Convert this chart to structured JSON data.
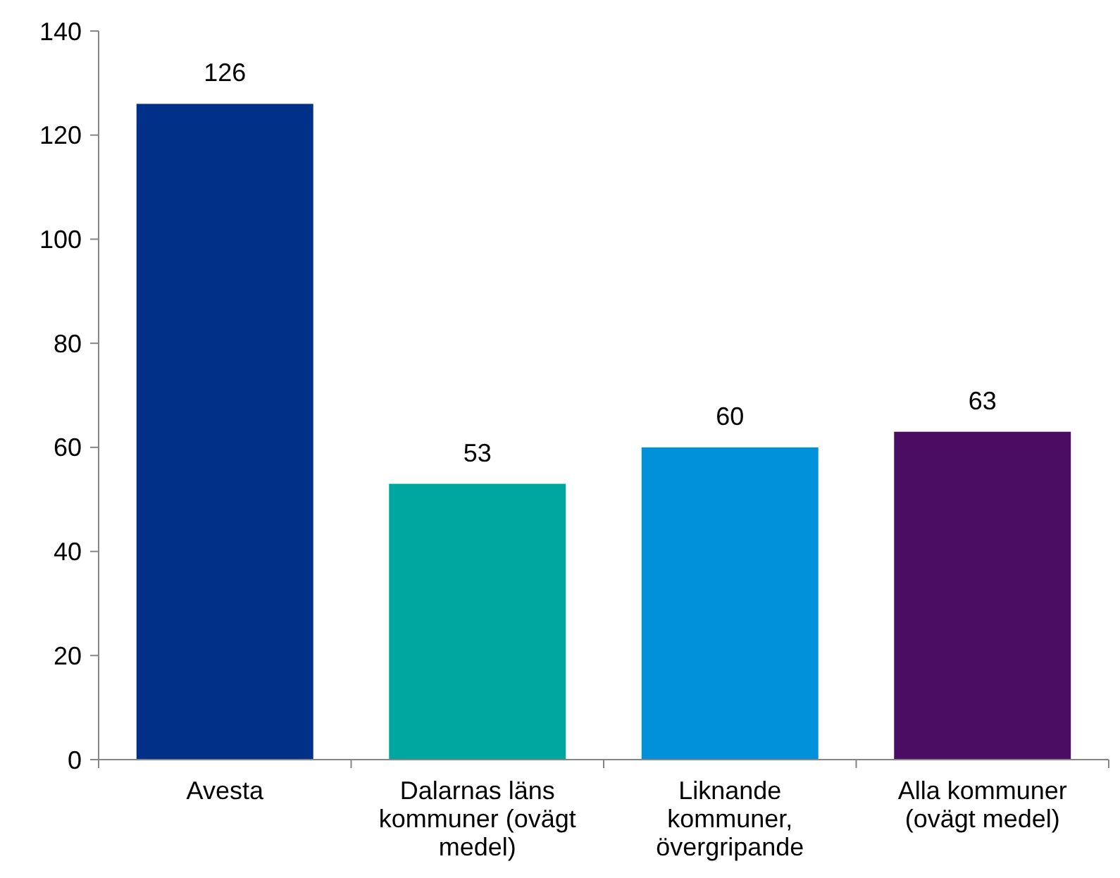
{
  "chart_data": {
    "type": "bar",
    "categories": [
      "Avesta",
      "Dalarnas läns kommuner (ovägt medel)",
      "Liknande kommuner, övergripande",
      "Alla kommuner (ovägt medel)"
    ],
    "values": [
      126,
      53,
      60,
      63
    ],
    "colors": [
      "#003087",
      "#00a6a0",
      "#0091da",
      "#4b0d63"
    ],
    "ylim": [
      0,
      140
    ],
    "yticks": [
      0,
      20,
      40,
      60,
      80,
      100,
      120,
      140
    ],
    "data_labels": true
  }
}
